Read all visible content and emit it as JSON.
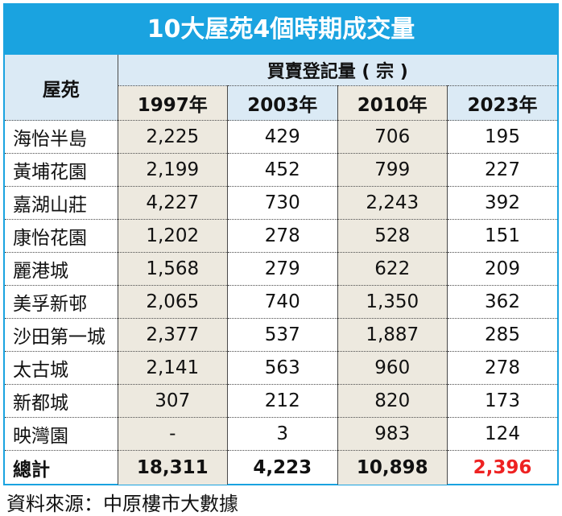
{
  "title": "10大屋苑4個時期成交量",
  "header": {
    "estate_label": "屋苑",
    "group_label": "買賣登記量 ( 宗 )"
  },
  "accent_color": "#1aa3e0",
  "highlight_color": "#ee2222",
  "chart_data": {
    "type": "table",
    "title": "10大屋苑4個時期成交量",
    "columns": [
      "1997年",
      "2003年",
      "2010年",
      "2023年"
    ],
    "rows": [
      {
        "name": "海怡半島",
        "values": [
          "2,225",
          "429",
          "706",
          "195"
        ]
      },
      {
        "name": "黃埔花園",
        "values": [
          "2,199",
          "452",
          "799",
          "227"
        ]
      },
      {
        "name": "嘉湖山莊",
        "values": [
          "4,227",
          "730",
          "2,243",
          "392"
        ]
      },
      {
        "name": "康怡花園",
        "values": [
          "1,202",
          "278",
          "528",
          "151"
        ]
      },
      {
        "name": "麗港城",
        "values": [
          "1,568",
          "279",
          "622",
          "209"
        ]
      },
      {
        "name": "美孚新邨",
        "values": [
          "2,065",
          "740",
          "1,350",
          "362"
        ]
      },
      {
        "name": "沙田第一城",
        "values": [
          "2,377",
          "537",
          "1,887",
          "285"
        ]
      },
      {
        "name": "太古城",
        "values": [
          "2,141",
          "563",
          "960",
          "278"
        ]
      },
      {
        "name": "新都城",
        "values": [
          "307",
          "212",
          "820",
          "173"
        ]
      },
      {
        "name": "映灣園",
        "values": [
          "-",
          "3",
          "983",
          "124"
        ]
      }
    ],
    "total": {
      "name": "總計",
      "values": [
        "18,311",
        "4,223",
        "10,898",
        "2,396"
      ]
    }
  },
  "source": "資料來源：中原樓市大數據"
}
